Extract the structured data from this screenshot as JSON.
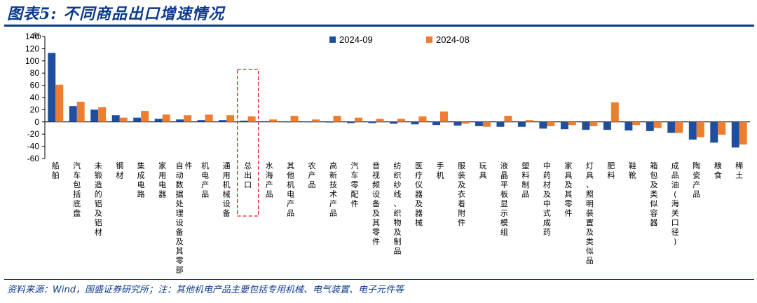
{
  "title": "图表5:  不同商品出口增速情况",
  "source": "资料来源：Wind，国盛证券研究所；注：其他机电产品主要包括专用机械、电气装置、电子元件等",
  "colors": {
    "series1": "#1f4e9e",
    "series2": "#ed7d31",
    "accent": "#0b3a8c",
    "highlight": "#e02020"
  },
  "chart_data": {
    "type": "bar",
    "ylabel": "%",
    "ylim": [
      -60,
      140
    ],
    "yticks": [
      140,
      120,
      100,
      80,
      60,
      40,
      20,
      0,
      -20,
      -40,
      -60
    ],
    "legend_position": "top-center",
    "highlighted_category": "总出口",
    "categories": [
      "船舶",
      "汽车包括底盘",
      "未锻造的铝及铝材",
      "钢材",
      "集成电路",
      "家用电器",
      "自动数据处理设备及其零部件",
      "机电产品",
      "通用机械设备",
      "总出口",
      "水海产品",
      "其他机电产品",
      "农产品",
      "高新技术产品",
      "汽车零配件",
      "音视频设备及其零件",
      "纺织纱线、织物及制品",
      "医疗仪器及器械",
      "手机",
      "服装及衣着附件",
      "玩具",
      "液晶平板显示模组",
      "塑料制品",
      "中药材及中式成药",
      "家具及其零件",
      "灯具、照明装置及类似品",
      "肥料",
      "鞋靴",
      "箱包及类似容器",
      "成品油(海关口径)",
      "陶瓷产品",
      "粮食",
      "稀土"
    ],
    "series": [
      {
        "name": "2024-09",
        "values": [
          113,
          26,
          20,
          11,
          7,
          5,
          4,
          3,
          3,
          2,
          1,
          0,
          0,
          -1,
          -2,
          -2,
          -3,
          -4,
          -5,
          -6,
          -7,
          -8,
          -8,
          -11,
          -12,
          -13,
          -13,
          -14,
          -15,
          -18,
          -29,
          -34,
          -42
        ]
      },
      {
        "name": "2024-08",
        "values": [
          61,
          33,
          24,
          7,
          18,
          12,
          11,
          12,
          11,
          9,
          4,
          10,
          4,
          10,
          7,
          5,
          5,
          9,
          17,
          -3,
          -8,
          10,
          3,
          -7,
          -5,
          -7,
          32,
          -5,
          -10,
          -18,
          -25,
          -21,
          -37
        ]
      }
    ]
  }
}
